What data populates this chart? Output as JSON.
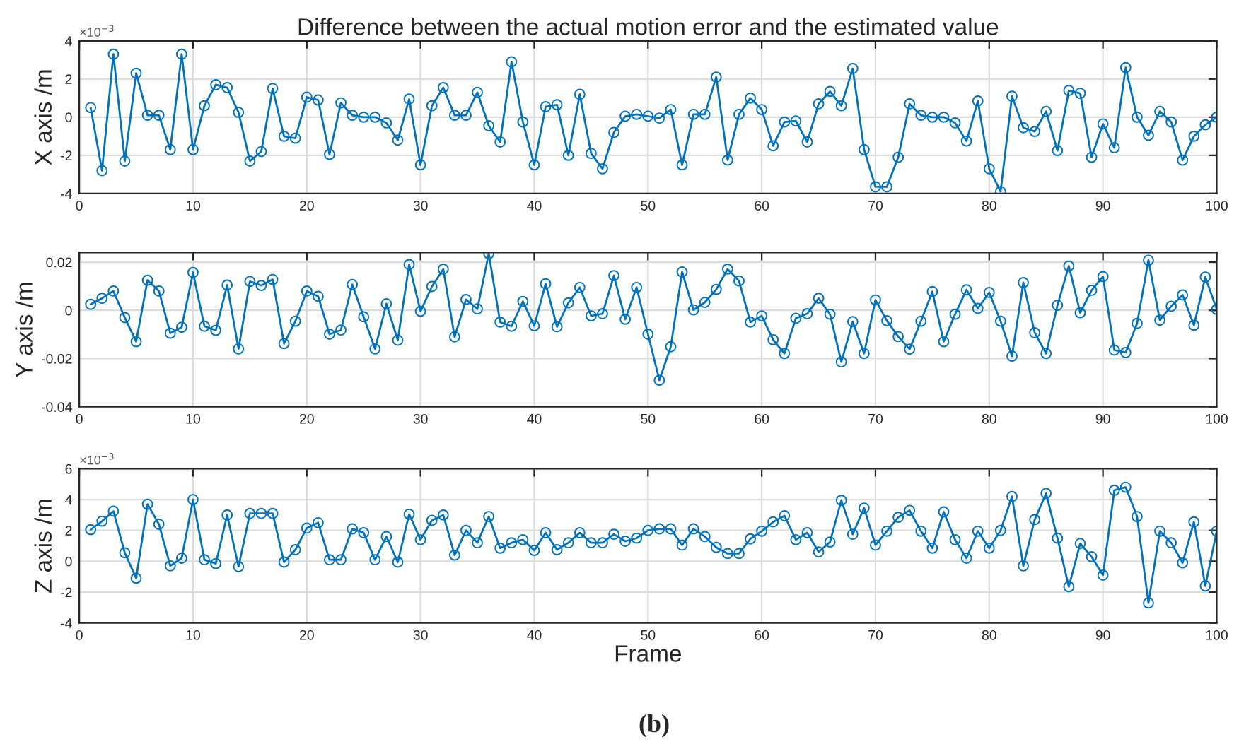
{
  "chart_data": [
    {
      "type": "line",
      "title": "Difference between the actual motion error and the estimated value",
      "ylabel": "X axis /m",
      "x": [
        1,
        2,
        3,
        4,
        5,
        6,
        7,
        8,
        9,
        10,
        11,
        12,
        13,
        14,
        15,
        16,
        17,
        18,
        19,
        20,
        21,
        22,
        23,
        24,
        25,
        26,
        27,
        28,
        29,
        30,
        31,
        32,
        33,
        34,
        35,
        36,
        37,
        38,
        39,
        40,
        41,
        42,
        43,
        44,
        45,
        46,
        47,
        48,
        49,
        50,
        51,
        52,
        53,
        54,
        55,
        56,
        57,
        58,
        59,
        60,
        61,
        62,
        63,
        64,
        65,
        66,
        67,
        68,
        69,
        70,
        71,
        72,
        73,
        74,
        75,
        76,
        77,
        78,
        79,
        80,
        81,
        82,
        83,
        84,
        85,
        86,
        87,
        88,
        89,
        90,
        91,
        92,
        93,
        94,
        95,
        96,
        97,
        98,
        99,
        100
      ],
      "series": [
        {
          "color": "#0072bd",
          "values": [
            0.5,
            -2.8,
            3.3,
            -2.3,
            2.3,
            0.1,
            0.1,
            -1.7,
            3.3,
            -1.7,
            0.6,
            1.7,
            1.55,
            0.25,
            -2.3,
            -1.8,
            1.5,
            -1.0,
            -1.1,
            1.05,
            0.9,
            -1.95,
            0.75,
            0.1,
            0.0,
            0.0,
            -0.3,
            -1.2,
            0.95,
            -2.5,
            0.6,
            1.55,
            0.1,
            0.1,
            1.3,
            -0.45,
            -1.3,
            2.9,
            -0.25,
            -2.5,
            0.55,
            0.65,
            -2.0,
            1.2,
            -1.9,
            -2.7,
            -0.8,
            0.05,
            0.15,
            0.05,
            -0.05,
            0.4,
            -2.5,
            0.15,
            0.15,
            2.1,
            -2.25,
            0.15,
            1.0,
            0.4,
            -1.5,
            -0.25,
            -0.2,
            -1.3,
            0.7,
            1.35,
            0.6,
            2.55,
            -1.7,
            -3.65,
            -3.65,
            -2.1,
            0.7,
            0.1,
            0.0,
            0.0,
            -0.3,
            -1.25,
            0.85,
            -2.7,
            -3.9,
            1.1,
            -0.55,
            -0.75,
            0.3,
            -1.75,
            1.4,
            1.25,
            -2.1,
            -0.35,
            -1.6,
            2.6,
            0.0,
            -0.95,
            0.3,
            -0.25,
            -2.25,
            -1.0,
            -0.4,
            0.0
          ]
        }
      ],
      "xlim": [
        0,
        100
      ],
      "xticks": [
        0,
        10,
        20,
        30,
        40,
        50,
        60,
        70,
        80,
        90,
        100
      ],
      "ylim": [
        -4,
        4
      ],
      "yticks": [
        -4,
        -2,
        0,
        2,
        4
      ],
      "grid": true,
      "marker": "circle",
      "line_style": "solid",
      "annotations": [
        "×10$^{−3}$"
      ]
    },
    {
      "type": "line",
      "ylabel": "Y axis /m",
      "x": [
        1,
        2,
        3,
        4,
        5,
        6,
        7,
        8,
        9,
        10,
        11,
        12,
        13,
        14,
        15,
        16,
        17,
        18,
        19,
        20,
        21,
        22,
        23,
        24,
        25,
        26,
        27,
        28,
        29,
        30,
        31,
        32,
        33,
        34,
        35,
        36,
        37,
        38,
        39,
        40,
        41,
        42,
        43,
        44,
        45,
        46,
        47,
        48,
        49,
        50,
        51,
        52,
        53,
        54,
        55,
        56,
        57,
        58,
        59,
        60,
        61,
        62,
        63,
        64,
        65,
        66,
        67,
        68,
        69,
        70,
        71,
        72,
        73,
        74,
        75,
        76,
        77,
        78,
        79,
        80,
        81,
        82,
        83,
        84,
        85,
        86,
        87,
        88,
        89,
        90,
        91,
        92,
        93,
        94,
        95,
        96,
        97,
        98,
        99,
        100
      ],
      "series": [
        {
          "color": "#0072bd",
          "values": [
            0.0025,
            0.005,
            0.008,
            -0.003,
            -0.013,
            0.0125,
            0.008,
            -0.0095,
            -0.007,
            0.0157,
            -0.0066,
            -0.0083,
            0.0105,
            -0.016,
            0.012,
            0.0103,
            0.0128,
            -0.0138,
            -0.0045,
            0.008,
            0.0058,
            -0.0099,
            -0.0082,
            0.0107,
            -0.0027,
            -0.016,
            0.0027,
            -0.0124,
            0.019,
            -0.0004,
            0.0099,
            0.0171,
            -0.011,
            0.0045,
            0.0006,
            0.0235,
            -0.0049,
            -0.0066,
            0.0037,
            -0.0064,
            0.011,
            -0.0068,
            0.0031,
            0.0095,
            -0.0023,
            -0.0014,
            0.0144,
            -0.0037,
            0.0095,
            -0.0099,
            -0.029,
            -0.0151,
            0.0159,
            0.0002,
            0.0033,
            0.0087,
            0.0171,
            0.0122,
            -0.0049,
            -0.0023,
            -0.0122,
            -0.0179,
            -0.0033,
            -0.0014,
            0.005,
            -0.0016,
            -0.0214,
            -0.0047,
            -0.0179,
            0.0043,
            -0.0043,
            -0.0109,
            -0.0161,
            -0.0045,
            0.0078,
            -0.013,
            -0.0016,
            0.0085,
            0.0008,
            0.0074,
            -0.0045,
            -0.019,
            0.0115,
            -0.0093,
            -0.0179,
            0.0021,
            0.0184,
            -0.001,
            0.0083,
            0.014,
            -0.0165,
            -0.0175,
            -0.0054,
            0.0208,
            -0.0041,
            0.0017,
            0.0064,
            -0.0062,
            0.0138,
            0.0004
          ]
        }
      ],
      "xlim": [
        0,
        100
      ],
      "xticks": [
        0,
        10,
        20,
        30,
        40,
        50,
        60,
        70,
        80,
        90,
        100
      ],
      "ylim": [
        -0.04,
        0.024
      ],
      "yticks": [
        -0.04,
        -0.02,
        0,
        0.02
      ],
      "grid": true,
      "marker": "circle",
      "line_style": "solid"
    },
    {
      "type": "line",
      "xlabel": "Frame",
      "ylabel": "Z axis /m",
      "x": [
        1,
        2,
        3,
        4,
        5,
        6,
        7,
        8,
        9,
        10,
        11,
        12,
        13,
        14,
        15,
        16,
        17,
        18,
        19,
        20,
        21,
        22,
        23,
        24,
        25,
        26,
        27,
        28,
        29,
        30,
        31,
        32,
        33,
        34,
        35,
        36,
        37,
        38,
        39,
        40,
        41,
        42,
        43,
        44,
        45,
        46,
        47,
        48,
        49,
        50,
        51,
        52,
        53,
        54,
        55,
        56,
        57,
        58,
        59,
        60,
        61,
        62,
        63,
        64,
        65,
        66,
        67,
        68,
        69,
        70,
        71,
        72,
        73,
        74,
        75,
        76,
        77,
        78,
        79,
        80,
        81,
        82,
        83,
        84,
        85,
        86,
        87,
        88,
        89,
        90,
        91,
        92,
        93,
        94,
        95,
        96,
        97,
        98,
        99,
        100
      ],
      "series": [
        {
          "color": "#0072bd",
          "values": [
            2.05,
            2.6,
            3.25,
            0.55,
            -1.1,
            3.7,
            2.4,
            -0.3,
            0.2,
            4.0,
            0.1,
            -0.15,
            3.0,
            -0.35,
            3.1,
            3.1,
            3.1,
            -0.05,
            0.75,
            2.15,
            2.5,
            0.1,
            0.1,
            2.1,
            1.85,
            0.1,
            1.6,
            -0.05,
            3.05,
            1.4,
            2.65,
            3.0,
            0.4,
            2.0,
            1.2,
            2.9,
            0.85,
            1.2,
            1.4,
            0.7,
            1.85,
            0.75,
            1.2,
            1.85,
            1.2,
            1.2,
            1.75,
            1.3,
            1.5,
            2.0,
            2.1,
            2.1,
            1.05,
            2.1,
            1.6,
            0.9,
            0.5,
            0.5,
            1.45,
            1.95,
            2.55,
            2.95,
            1.4,
            1.85,
            0.6,
            1.25,
            3.95,
            1.75,
            3.45,
            1.05,
            1.95,
            2.85,
            3.3,
            1.95,
            0.85,
            3.2,
            1.4,
            0.2,
            1.95,
            0.85,
            2.0,
            4.2,
            -0.3,
            2.7,
            4.4,
            1.5,
            -1.65,
            1.15,
            0.3,
            -0.9,
            4.6,
            4.8,
            2.9,
            -2.7,
            1.95,
            1.2,
            -0.1,
            2.55,
            -1.6,
            1.95
          ]
        }
      ],
      "xlim": [
        0,
        100
      ],
      "xticks": [
        0,
        10,
        20,
        30,
        40,
        50,
        60,
        70,
        80,
        90,
        100
      ],
      "ylim": [
        -4,
        6
      ],
      "yticks": [
        -4,
        -2,
        0,
        2,
        4,
        6
      ],
      "grid": true,
      "marker": "circle",
      "line_style": "solid",
      "annotations": [
        "×10$^{−3}$",
        "(b)"
      ]
    }
  ]
}
